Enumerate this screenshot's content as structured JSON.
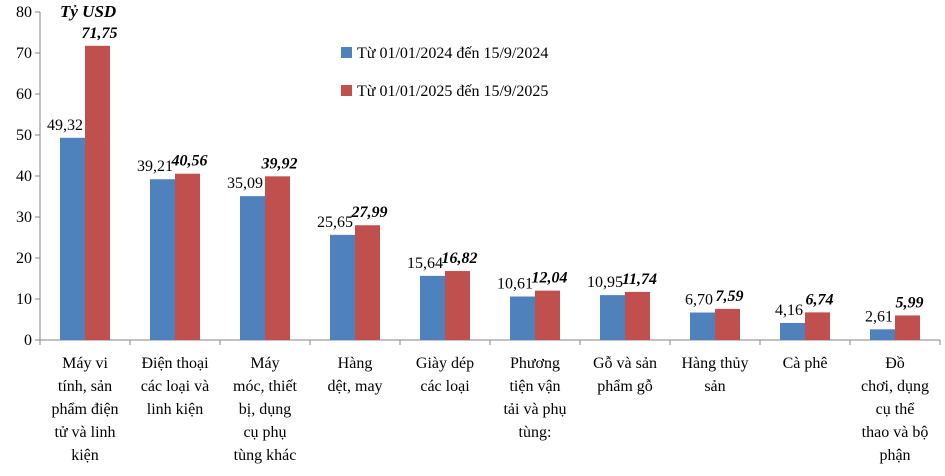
{
  "chart_data": {
    "type": "bar",
    "unit_label": "Tỷ USD",
    "ylim": [
      0,
      80
    ],
    "yticks": [
      "0",
      "10",
      "20",
      "30",
      "40",
      "50",
      "60",
      "70",
      "80"
    ],
    "categories": [
      [
        "Máy vi",
        "tính, sản",
        "phẩm điện",
        "tử và linh",
        "kiện"
      ],
      [
        "Điện thoại",
        "các loại và",
        "linh kiện"
      ],
      [
        "Máy",
        "móc, thiết",
        "bị, dụng",
        "cụ phụ",
        "tùng khác"
      ],
      [
        "Hàng",
        "dệt, may"
      ],
      [
        "Giày dép",
        "các loại"
      ],
      [
        "Phương",
        "tiện vận",
        "tải và phụ",
        "tùng:"
      ],
      [
        "Gỗ và sản",
        "phẩm gỗ"
      ],
      [
        "Hàng thủy",
        "sản"
      ],
      [
        "Cà phê"
      ],
      [
        "Đồ",
        "chơi, dụng",
        "cụ thể",
        "thao và bộ",
        "phận"
      ]
    ],
    "series": [
      {
        "name": "Từ 01/01/2024 đến 15/9/2024",
        "color": "#4F81BD",
        "values": [
          49.32,
          39.21,
          35.09,
          25.65,
          15.64,
          10.61,
          10.95,
          6.7,
          4.16,
          2.61
        ],
        "labels": [
          "49,32",
          "39,21",
          "35,09",
          "25,65",
          "15,64",
          "10,61",
          "10,95",
          "6,70",
          "4,16",
          "2,61"
        ]
      },
      {
        "name": "Từ 01/01/2025 đến 15/9/2025",
        "color": "#C0504D",
        "values": [
          71.75,
          40.56,
          39.92,
          27.99,
          16.82,
          12.04,
          11.74,
          7.59,
          6.74,
          5.99
        ],
        "labels": [
          "71,75",
          "40,56",
          "39,92",
          "27,99",
          "16,82",
          "12,04",
          "11,74",
          "7,59",
          "6,74",
          "5,99"
        ]
      }
    ],
    "legend_position": "top-center",
    "grid": false
  }
}
